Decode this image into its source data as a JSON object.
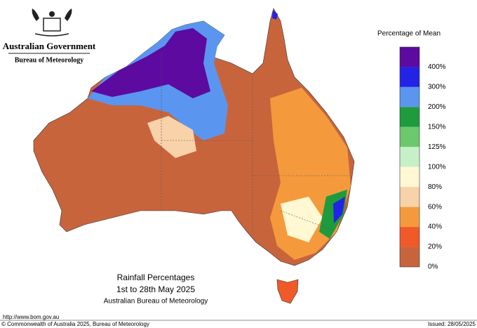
{
  "header": {
    "agency": "Australian Government",
    "bureau": "Bureau of Meteorology"
  },
  "map": {
    "caption": [
      "Rainfall Percentages",
      "1st to 28th May 2025",
      "Australian Bureau of Meteorology"
    ]
  },
  "legend": {
    "title": "Percentage of Mean",
    "colors": [
      "#5c0aa0",
      "#2323e6",
      "#5a96f0",
      "#1e9b3c",
      "#6cc86c",
      "#c8f0c8",
      "#fff8d2",
      "#f8d2a8",
      "#f59a3c",
      "#f05a28",
      "#c8643c"
    ],
    "labels": [
      "400%",
      "300%",
      "200%",
      "150%",
      "125%",
      "100%",
      "80%",
      "60%",
      "40%",
      "20%",
      "0%"
    ]
  },
  "footer": {
    "url": "http://www.bom.gov.au",
    "copyright": "© Commonwealth of Australia 2025, Bureau of Meteorology",
    "issued": "Issued: 28/05/2025"
  }
}
